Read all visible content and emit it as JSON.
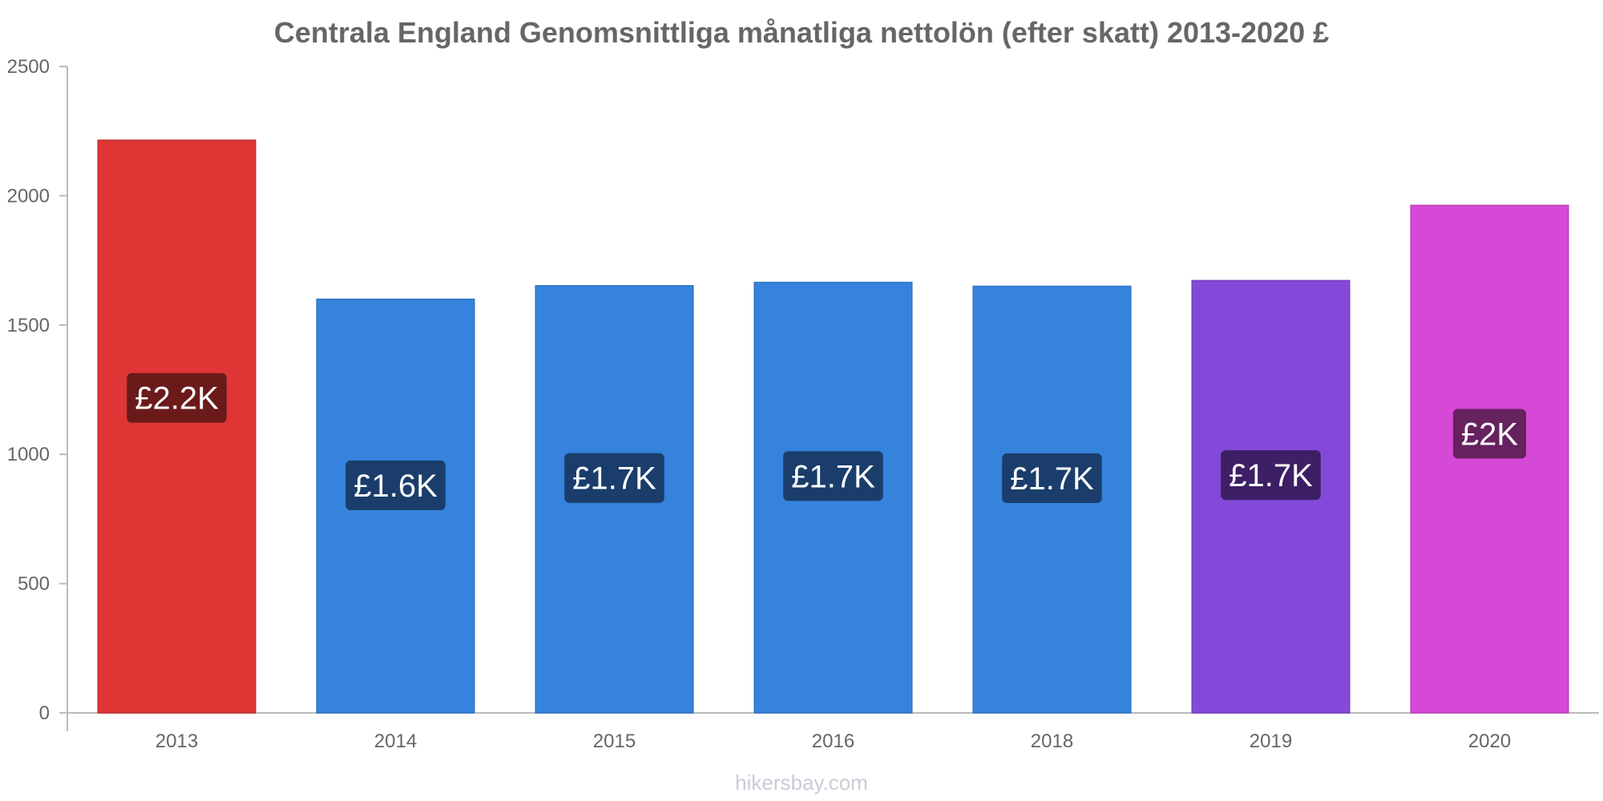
{
  "chart_data": {
    "type": "bar",
    "title": "Centrala England Genomsnittliga månatliga nettolön (efter skatt) 2013-2020 £",
    "xlabel": "",
    "ylabel": "",
    "ylim": [
      0,
      2500
    ],
    "yticks": [
      0,
      500,
      1000,
      1500,
      2000,
      2500
    ],
    "grid": false,
    "categories": [
      "2013",
      "2014",
      "2015",
      "2016",
      "2018",
      "2019",
      "2020"
    ],
    "values": [
      2215,
      1600,
      1652,
      1665,
      1650,
      1672,
      1963
    ],
    "data_labels": [
      "£2.2K",
      "£1.6K",
      "£1.7K",
      "£1.7K",
      "£1.7K",
      "£1.7K",
      "£2K"
    ],
    "bar_colors": [
      "#e03535",
      "#3583dd",
      "#3583dd",
      "#3583dd",
      "#3583dd",
      "#8349d8",
      "#d649d6"
    ],
    "bar_border_colors": [
      "#c42e2e",
      "#2e73c4",
      "#2e73c4",
      "#2e73c4",
      "#2e73c4",
      "#733fc0",
      "#bd3fbd"
    ],
    "label_bg_colors": [
      "#6b1a1a",
      "#1a3d6b",
      "#1a3d6b",
      "#1a3d6b",
      "#1a3d6b",
      "#3d1f66",
      "#66215f"
    ]
  },
  "watermark": "hikersbay.com"
}
